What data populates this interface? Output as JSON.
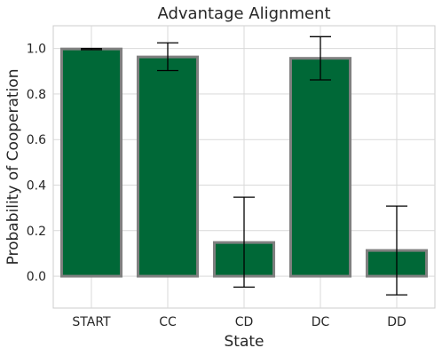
{
  "chart_data": {
    "type": "bar",
    "title": "Advantage Alignment",
    "xlabel": "State",
    "ylabel": "Probability of Cooperation",
    "categories": [
      "START",
      "CC",
      "CD",
      "DC",
      "DD"
    ],
    "values": [
      0.998,
      0.963,
      0.148,
      0.957,
      0.113
    ],
    "error_low": [
      0.995,
      0.903,
      -0.048,
      0.862,
      -0.082
    ],
    "error_high": [
      1.0,
      1.025,
      0.347,
      1.052,
      0.308
    ],
    "ylim": [
      -0.14,
      1.1
    ],
    "yticks": [
      0.0,
      0.2,
      0.4,
      0.6,
      0.8,
      1.0
    ],
    "ytick_labels": [
      "0.0",
      "0.2",
      "0.4",
      "0.6",
      "0.8",
      "1.0"
    ],
    "grid": true,
    "colors": {
      "bar_fill": "#006837",
      "bar_edge": "#808080",
      "grid": "#d9d9d9",
      "error_bar": "#000000"
    }
  }
}
